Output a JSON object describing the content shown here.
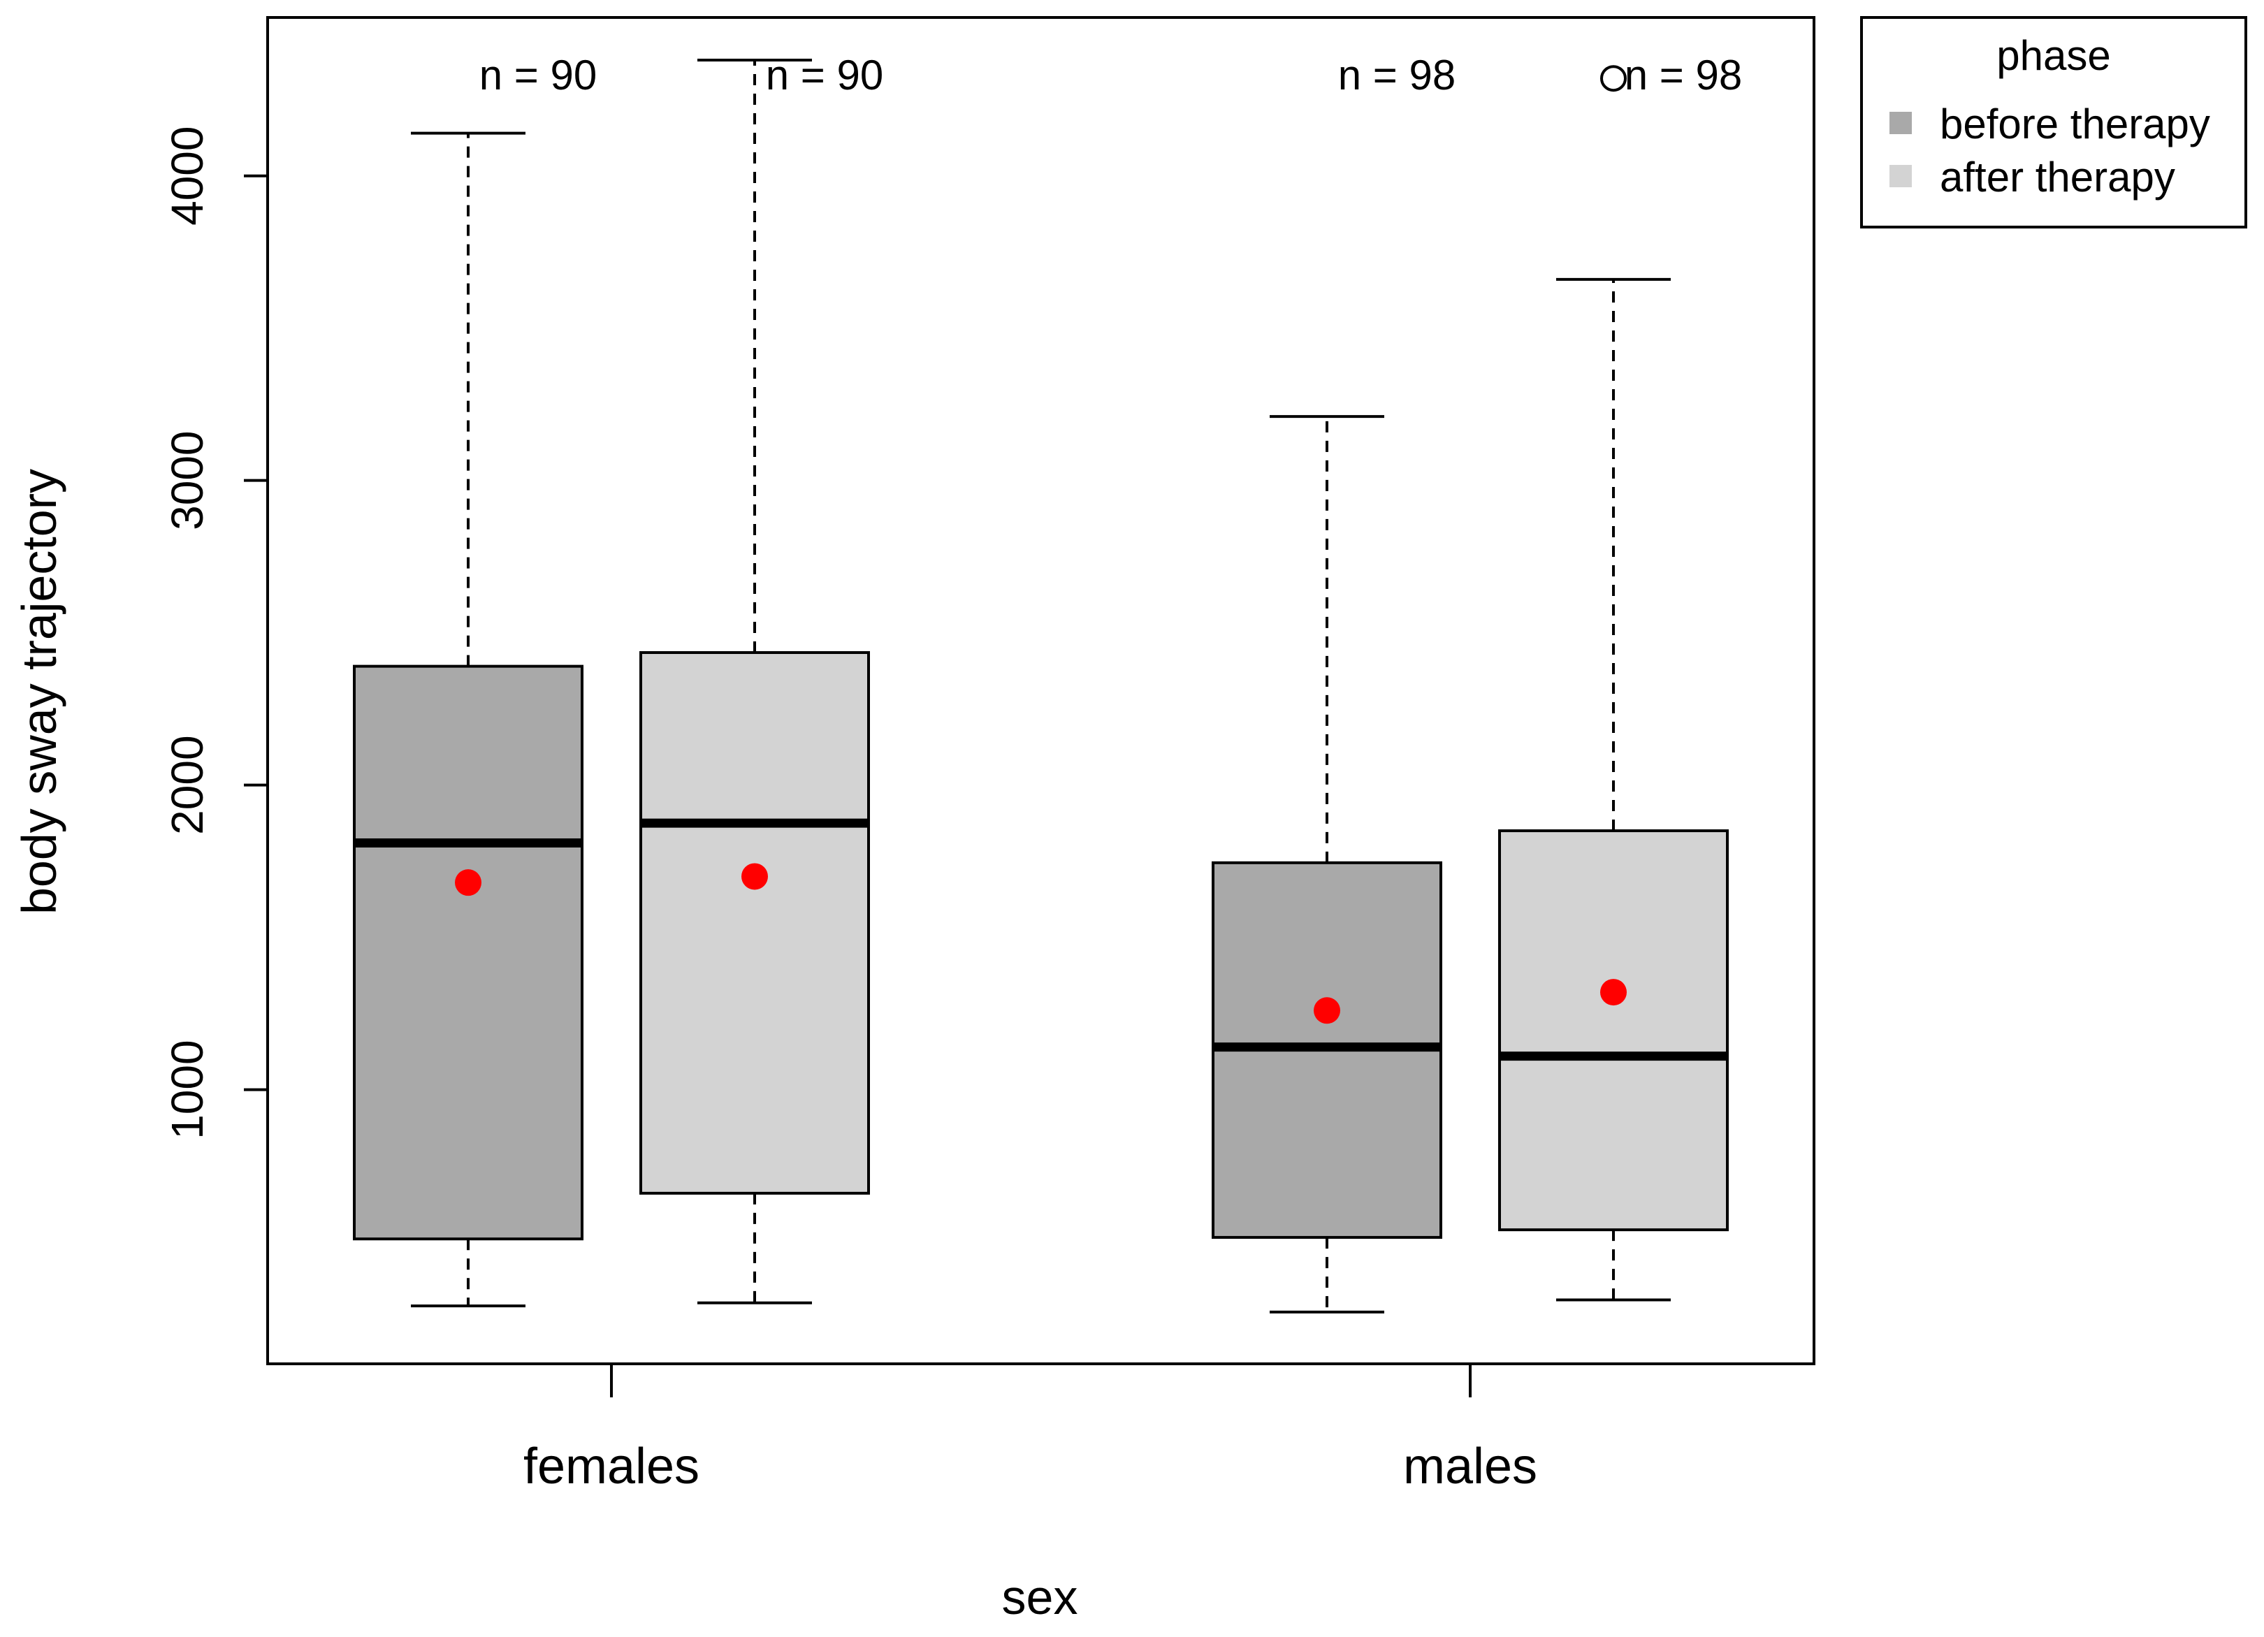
{
  "chart_data": {
    "type": "boxplot",
    "title": "",
    "xlabel": "sex",
    "ylabel": "body sway trajectory",
    "ylim": [
      100,
      4520
    ],
    "yticks": [
      1000,
      2000,
      3000,
      4000
    ],
    "yticklabels": [
      "1000",
      "2000",
      "3000",
      "4000"
    ],
    "categories": [
      "females",
      "males"
    ],
    "legend": {
      "title": "phase",
      "position": "outside-top-right",
      "entries": [
        {
          "label": "before therapy",
          "color": "#a9a9a9"
        },
        {
          "label": "after therapy",
          "color": "#d3d3d3"
        }
      ]
    },
    "colors": {
      "mean_point": "#ff0000",
      "before": "#a9a9a9",
      "after": "#d3d3d3"
    },
    "series": [
      {
        "name": "before therapy",
        "boxes": [
          {
            "category": "females",
            "whisker_low": 290,
            "q1": 510,
            "median": 1810,
            "q3": 2390,
            "whisker_high": 4140,
            "mean": 1680,
            "outliers": [],
            "n_label": "n = 90"
          },
          {
            "category": "males",
            "whisker_low": 270,
            "q1": 515,
            "median": 1140,
            "q3": 1745,
            "whisker_high": 3210,
            "mean": 1260,
            "outliers": [],
            "n_label": "n = 98"
          }
        ]
      },
      {
        "name": "after therapy",
        "boxes": [
          {
            "category": "females",
            "whisker_low": 300,
            "q1": 660,
            "median": 1875,
            "q3": 2435,
            "whisker_high": 4380,
            "mean": 1700,
            "outliers": [],
            "n_label": "n = 90"
          },
          {
            "category": "males",
            "whisker_low": 310,
            "q1": 540,
            "median": 1110,
            "q3": 1850,
            "whisker_high": 3660,
            "mean": 1320,
            "outliers": [
              4320
            ],
            "n_label": "n = 98"
          }
        ]
      }
    ]
  }
}
